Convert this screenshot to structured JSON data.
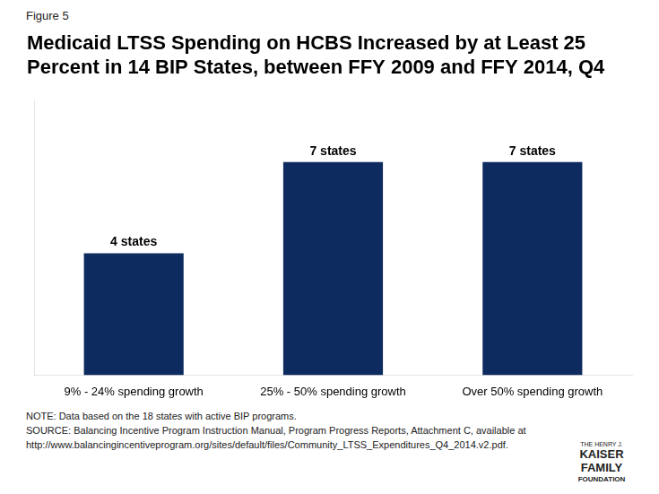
{
  "chart_data": {
    "type": "bar",
    "title": [
      "Medicaid LTSS Spending on HCBS Increased by at Least 25",
      "Percent in 14 BIP States, between FFY 2009 and FFY 2014, Q4"
    ],
    "subtitle": "Figure 5",
    "categories": [
      "9% - 24% spending growth",
      "25% - 50% spending growth",
      "Over 50% spending growth"
    ],
    "values": [
      4,
      7,
      7
    ],
    "value_labels": [
      "4 states",
      "7 states",
      "7 states"
    ],
    "data_labels": true,
    "color": "#0d2b5e",
    "ylim": [
      0,
      9
    ],
    "grid": false,
    "tick_labels": "x",
    "annotations": {
      "notes": [
        "NOTE: Data based on the 18 states with active BIP programs.",
        "SOURCE: Balancing Incentive Program Instruction Manual, Program Progress Reports, Attachment C, available at",
        "http://www.balancingincentiveprogram.org/sites/default/files/Community_LTSS_Expenditures_Q4_2014.v2.pdf."
      ],
      "logo": [
        "THE HENRY J.",
        "KAISER",
        "FAMILY",
        "FOUNDATION"
      ]
    }
  }
}
